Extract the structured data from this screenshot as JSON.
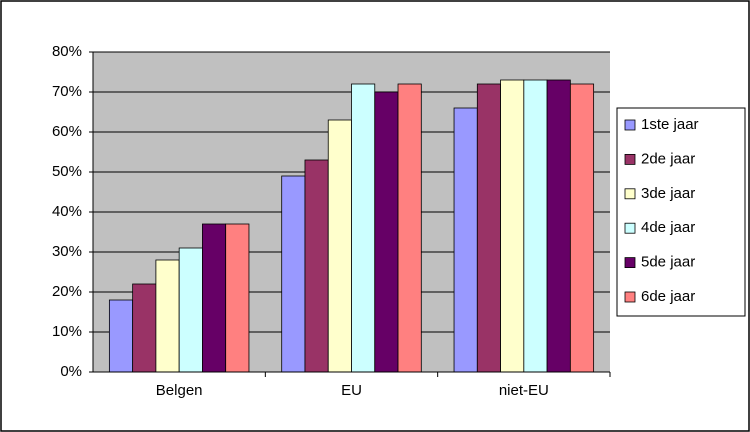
{
  "chart_data": {
    "type": "bar",
    "categories": [
      "Belgen",
      "EU",
      "niet-EU"
    ],
    "series": [
      {
        "name": "1ste jaar",
        "color": "#9999ff",
        "values": [
          18,
          49,
          66
        ]
      },
      {
        "name": "2de jaar",
        "color": "#993366",
        "values": [
          22,
          53,
          72
        ]
      },
      {
        "name": "3de jaar",
        "color": "#ffffcc",
        "values": [
          28,
          63,
          73
        ]
      },
      {
        "name": "4de jaar",
        "color": "#ccffff",
        "values": [
          31,
          72,
          73
        ]
      },
      {
        "name": "5de jaar",
        "color": "#660066",
        "values": [
          37,
          70,
          73
        ]
      },
      {
        "name": "6de jaar",
        "color": "#ff8080",
        "values": [
          37,
          72,
          72
        ]
      }
    ],
    "ylim": [
      0,
      80
    ],
    "yticks": [
      {
        "value": 0,
        "label": "0%"
      },
      {
        "value": 10,
        "label": "10%"
      },
      {
        "value": 20,
        "label": "20%"
      },
      {
        "value": 30,
        "label": "30%"
      },
      {
        "value": 40,
        "label": "40%"
      },
      {
        "value": 50,
        "label": "50%"
      },
      {
        "value": 60,
        "label": "60%"
      },
      {
        "value": 70,
        "label": "70%"
      },
      {
        "value": 80,
        "label": "80%"
      }
    ],
    "grid": true,
    "plot_background": "#c0c0c0",
    "legend": "right"
  }
}
